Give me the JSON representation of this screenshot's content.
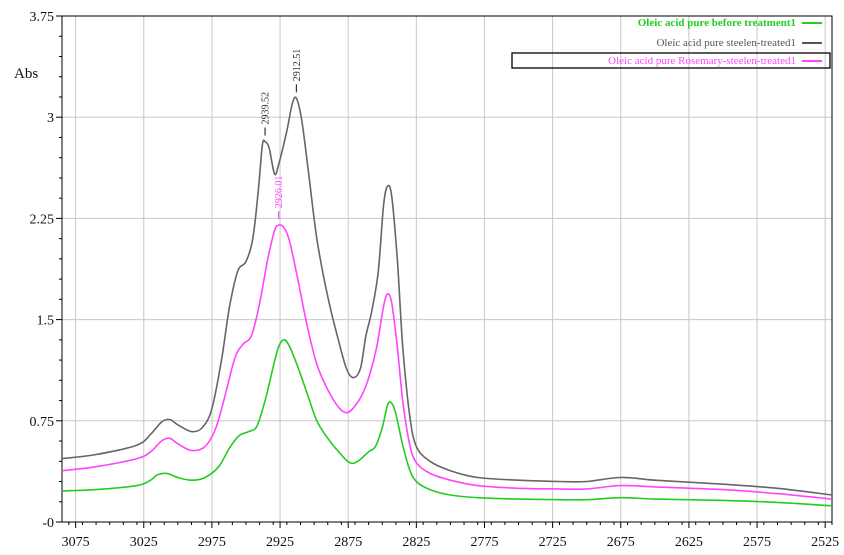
{
  "chart_data": {
    "type": "line",
    "title": "",
    "xlabel": "",
    "ylabel": "Abs",
    "x_reversed": true,
    "xlim": [
      3085,
      2520
    ],
    "ylim": [
      0,
      3.75
    ],
    "x_ticks": [
      "3075",
      "3025",
      "2975",
      "2925",
      "2875",
      "2825",
      "2775",
      "2725",
      "2675",
      "2625",
      "2575",
      "2525"
    ],
    "x_tick_values": [
      3075,
      3025,
      2975,
      2925,
      2875,
      2825,
      2775,
      2725,
      2675,
      2625,
      2575,
      2525
    ],
    "y_ticks": [
      "-0",
      "0.75",
      "1.5",
      "2.25",
      "3",
      "3.75"
    ],
    "y_tick_values": [
      0,
      0.75,
      1.5,
      2.25,
      3,
      3.75
    ],
    "grid": true,
    "legend_position": "top-right",
    "series": [
      {
        "name": "Oleic acid pure before treatment1",
        "color": "#22cc22",
        "points": [
          [
            3085,
            0.23
          ],
          [
            3060,
            0.24
          ],
          [
            3030,
            0.27
          ],
          [
            3020,
            0.31
          ],
          [
            3015,
            0.35
          ],
          [
            3008,
            0.36
          ],
          [
            3000,
            0.33
          ],
          [
            2990,
            0.31
          ],
          [
            2980,
            0.33
          ],
          [
            2970,
            0.41
          ],
          [
            2962,
            0.55
          ],
          [
            2955,
            0.64
          ],
          [
            2948,
            0.67
          ],
          [
            2942,
            0.71
          ],
          [
            2936,
            0.9
          ],
          [
            2930,
            1.15
          ],
          [
            2926,
            1.3
          ],
          [
            2922,
            1.35
          ],
          [
            2918,
            1.3
          ],
          [
            2912,
            1.15
          ],
          [
            2905,
            0.95
          ],
          [
            2898,
            0.75
          ],
          [
            2890,
            0.62
          ],
          [
            2882,
            0.52
          ],
          [
            2874,
            0.44
          ],
          [
            2868,
            0.45
          ],
          [
            2860,
            0.52
          ],
          [
            2855,
            0.56
          ],
          [
            2850,
            0.7
          ],
          [
            2846,
            0.87
          ],
          [
            2843,
            0.88
          ],
          [
            2840,
            0.8
          ],
          [
            2835,
            0.57
          ],
          [
            2830,
            0.39
          ],
          [
            2825,
            0.3
          ],
          [
            2815,
            0.24
          ],
          [
            2800,
            0.2
          ],
          [
            2780,
            0.18
          ],
          [
            2750,
            0.17
          ],
          [
            2720,
            0.165
          ],
          [
            2700,
            0.165
          ],
          [
            2675,
            0.18
          ],
          [
            2650,
            0.17
          ],
          [
            2600,
            0.16
          ],
          [
            2560,
            0.145
          ],
          [
            2520,
            0.12
          ]
        ]
      },
      {
        "name": "Oleic acid pure steelen-treated1",
        "color": "#666666",
        "points": [
          [
            3085,
            0.47
          ],
          [
            3060,
            0.5
          ],
          [
            3030,
            0.57
          ],
          [
            3020,
            0.65
          ],
          [
            3012,
            0.74
          ],
          [
            3006,
            0.76
          ],
          [
            3000,
            0.72
          ],
          [
            2990,
            0.67
          ],
          [
            2982,
            0.7
          ],
          [
            2975,
            0.84
          ],
          [
            2968,
            1.2
          ],
          [
            2962,
            1.6
          ],
          [
            2956,
            1.86
          ],
          [
            2950,
            1.93
          ],
          [
            2945,
            2.1
          ],
          [
            2941,
            2.45
          ],
          [
            2938,
            2.79
          ],
          [
            2936,
            2.82
          ],
          [
            2933,
            2.77
          ],
          [
            2929,
            2.58
          ],
          [
            2926,
            2.65
          ],
          [
            2920,
            2.9
          ],
          [
            2916,
            3.1
          ],
          [
            2913,
            3.14
          ],
          [
            2909,
            2.97
          ],
          [
            2904,
            2.58
          ],
          [
            2898,
            2.1
          ],
          [
            2890,
            1.67
          ],
          [
            2882,
            1.34
          ],
          [
            2876,
            1.13
          ],
          [
            2871,
            1.07
          ],
          [
            2866,
            1.14
          ],
          [
            2862,
            1.38
          ],
          [
            2858,
            1.55
          ],
          [
            2853,
            1.85
          ],
          [
            2849,
            2.35
          ],
          [
            2846,
            2.49
          ],
          [
            2843,
            2.41
          ],
          [
            2839,
            1.95
          ],
          [
            2835,
            1.3
          ],
          [
            2830,
            0.8
          ],
          [
            2825,
            0.56
          ],
          [
            2815,
            0.45
          ],
          [
            2800,
            0.38
          ],
          [
            2780,
            0.33
          ],
          [
            2750,
            0.31
          ],
          [
            2720,
            0.3
          ],
          [
            2700,
            0.3
          ],
          [
            2675,
            0.33
          ],
          [
            2650,
            0.31
          ],
          [
            2600,
            0.28
          ],
          [
            2560,
            0.25
          ],
          [
            2520,
            0.2
          ]
        ]
      },
      {
        "name": "Oleic acid pure Rosemary-steelen-treated1",
        "color": "#ff44ff",
        "points": [
          [
            3085,
            0.38
          ],
          [
            3060,
            0.41
          ],
          [
            3030,
            0.47
          ],
          [
            3020,
            0.52
          ],
          [
            3012,
            0.6
          ],
          [
            3006,
            0.62
          ],
          [
            3000,
            0.58
          ],
          [
            2990,
            0.53
          ],
          [
            2980,
            0.56
          ],
          [
            2972,
            0.7
          ],
          [
            2965,
            0.95
          ],
          [
            2958,
            1.22
          ],
          [
            2952,
            1.32
          ],
          [
            2946,
            1.38
          ],
          [
            2940,
            1.62
          ],
          [
            2934,
            1.95
          ],
          [
            2929,
            2.16
          ],
          [
            2926,
            2.2
          ],
          [
            2922,
            2.18
          ],
          [
            2918,
            2.08
          ],
          [
            2912,
            1.8
          ],
          [
            2905,
            1.45
          ],
          [
            2898,
            1.17
          ],
          [
            2890,
            0.98
          ],
          [
            2882,
            0.85
          ],
          [
            2876,
            0.81
          ],
          [
            2870,
            0.86
          ],
          [
            2864,
            0.96
          ],
          [
            2859,
            1.1
          ],
          [
            2854,
            1.3
          ],
          [
            2849,
            1.6
          ],
          [
            2846,
            1.69
          ],
          [
            2843,
            1.62
          ],
          [
            2839,
            1.3
          ],
          [
            2835,
            0.9
          ],
          [
            2830,
            0.58
          ],
          [
            2825,
            0.44
          ],
          [
            2815,
            0.36
          ],
          [
            2800,
            0.31
          ],
          [
            2780,
            0.27
          ],
          [
            2750,
            0.25
          ],
          [
            2720,
            0.245
          ],
          [
            2700,
            0.245
          ],
          [
            2675,
            0.27
          ],
          [
            2650,
            0.26
          ],
          [
            2600,
            0.24
          ],
          [
            2560,
            0.21
          ],
          [
            2520,
            0.17
          ]
        ]
      }
    ],
    "legend": [
      {
        "label": "Oleic acid  pure  before  treatment1",
        "color": "#22cc22",
        "bold": true
      },
      {
        "label": "Oleic acid  pure  steelen-treated1",
        "color": "#555555",
        "bold": false
      },
      {
        "label": "Oleic acid  pure  Rosemary-steelen-treated1",
        "color": "#ff44ff",
        "bold": false,
        "boxed": true
      }
    ],
    "annotations": [
      {
        "text": "2939.52",
        "x": 2936,
        "y": 2.82,
        "color": "#333333"
      },
      {
        "text": "2912.51",
        "x": 2913,
        "y": 3.14,
        "color": "#333333"
      },
      {
        "text": "2926.01",
        "x": 2926,
        "y": 2.2,
        "color": "#ff44ff"
      }
    ]
  }
}
